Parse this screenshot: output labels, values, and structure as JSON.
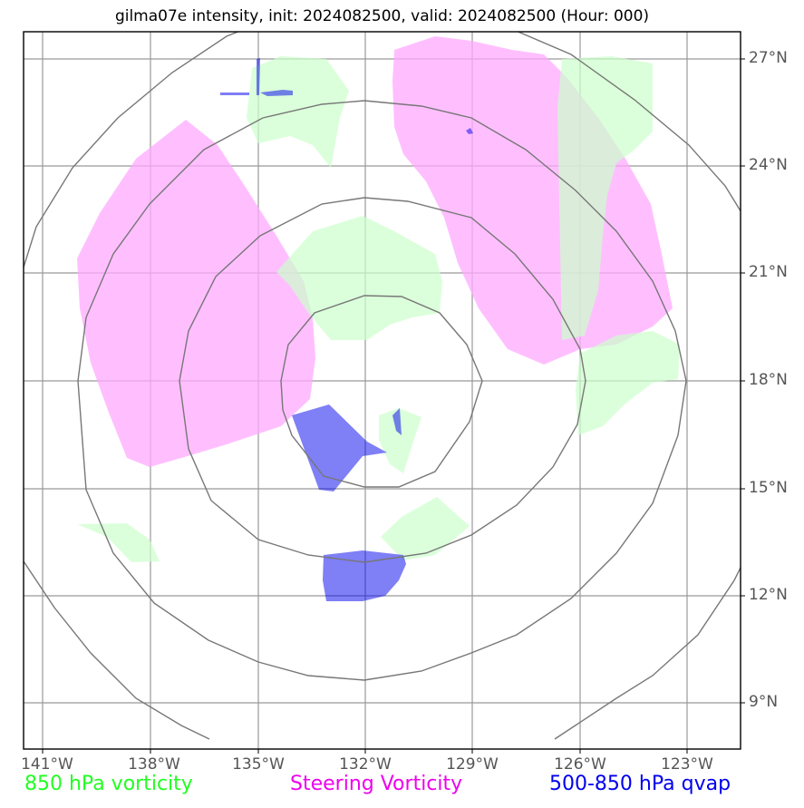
{
  "title": "gilma07e intensity, init: 2024082500, valid: 2024082500 (Hour: 000)",
  "map": {
    "lon_labels": [
      "141°W",
      "138°W",
      "135°W",
      "132°W",
      "129°W",
      "126°W",
      "123°W"
    ],
    "lat_labels": [
      "27°N",
      "24°N",
      "21°N",
      "18°N",
      "15°N",
      "12°N",
      "9°N"
    ],
    "center_lon": "132°W",
    "center_lat": "18°N",
    "range_rings": 4
  },
  "colors": {
    "vorticity_850": "#ccffcc",
    "steering_vorticity": "#ffaaff",
    "qvap_500_850": "#0000ee",
    "grid": "#999999",
    "rings": "#777777"
  },
  "legend": {
    "vorticity_850": "850 hPa vorticity",
    "steering_vorticity": "Steering Vorticity",
    "qvap": "500-850 hPa qvap"
  }
}
